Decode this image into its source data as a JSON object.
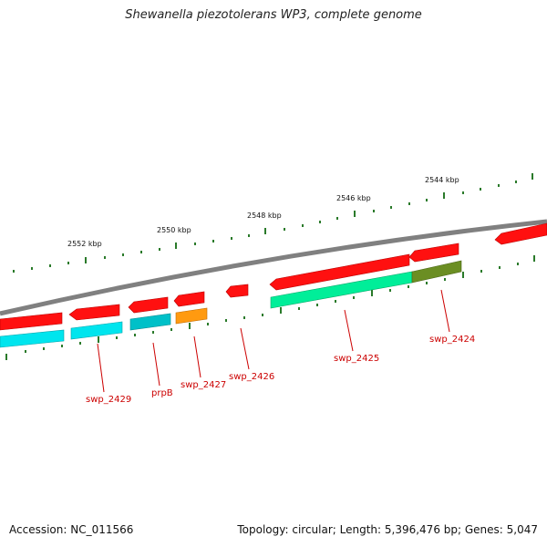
{
  "title": "Shewanella piezotolerans WP3, complete genome",
  "footer": {
    "accession": "Accession: NC_011566",
    "stats": "Topology: circular; Length: 5,396,476 bp; Genes: 5,047"
  },
  "ticks": [
    "2552 kbp",
    "2550 kbp",
    "2548 kbp",
    "2546 kbp",
    "2544 kbp"
  ],
  "gene_labels": [
    "swp_2429",
    "prpB",
    "swp_2427",
    "swp_2426",
    "swp_2425",
    "swp_2424"
  ],
  "colors": {
    "backbone": "#808080",
    "cds": "#ff0000",
    "tick_outer": "#006400",
    "tick_inner": "#2e8b2e",
    "label": "#cc0000",
    "cog": [
      "#00e5ee",
      "#00c0c0",
      "#ff9900",
      "#00ee99",
      "#6b8e23"
    ]
  }
}
